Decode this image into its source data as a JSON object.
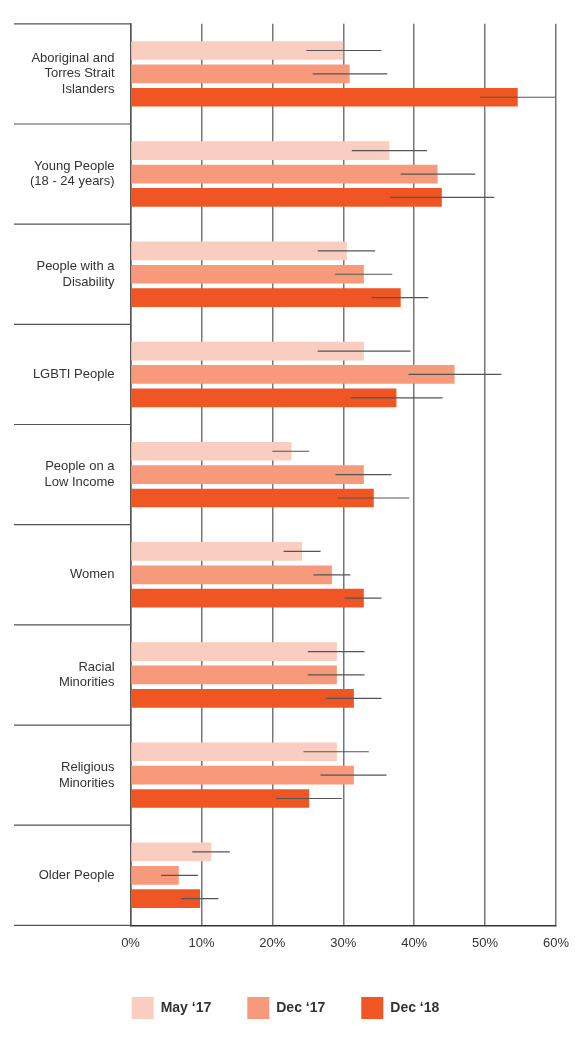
{
  "chart_data": {
    "type": "bar",
    "orientation": "horizontal",
    "categories": [
      "Aboriginal and\nTorres Strait\nIslanders",
      "Young People\n(18 - 24 years)",
      "People with a\nDisability",
      "LGBTI People",
      "People on a\nLow Income",
      "Women",
      "Racial\nMinorities",
      "Religious\nMinorities",
      "Older People"
    ],
    "series": [
      {
        "name": "May ‘17",
        "color": "#f9cdbf",
        "values": [
          30.0,
          36.5,
          30.5,
          32.9,
          22.7,
          24.2,
          29.1,
          29.1,
          11.4
        ],
        "errors": [
          [
            24.8,
            35.4
          ],
          [
            31.2,
            41.8
          ],
          [
            26.4,
            34.5
          ],
          [
            26.4,
            39.5
          ],
          [
            20.0,
            25.2
          ],
          [
            21.6,
            26.8
          ],
          [
            25.0,
            33.0
          ],
          [
            24.4,
            33.6
          ],
          [
            8.7,
            14.0
          ]
        ]
      },
      {
        "name": "Dec ‘17",
        "color": "#f69a7b",
        "values": [
          30.9,
          43.3,
          32.9,
          45.7,
          32.9,
          28.4,
          29.1,
          31.5,
          6.8
        ],
        "errors": [
          [
            25.7,
            36.2
          ],
          [
            38.1,
            48.6
          ],
          [
            28.8,
            36.9
          ],
          [
            39.2,
            52.3
          ],
          [
            28.9,
            36.8
          ],
          [
            25.8,
            31.0
          ],
          [
            25.0,
            33.0
          ],
          [
            26.8,
            36.1
          ],
          [
            4.3,
            9.5
          ]
        ]
      },
      {
        "name": "Dec ‘18",
        "color": "#f05623",
        "values": [
          54.6,
          43.9,
          38.1,
          37.5,
          34.3,
          32.9,
          31.5,
          25.2,
          9.8
        ],
        "errors": [
          [
            49.3,
            60.0
          ],
          [
            36.6,
            51.3
          ],
          [
            34.0,
            42.0
          ],
          [
            31.0,
            44.0
          ],
          [
            29.2,
            39.3
          ],
          [
            30.2,
            35.4
          ],
          [
            27.5,
            35.4
          ],
          [
            20.5,
            29.8
          ],
          [
            7.1,
            12.4
          ]
        ]
      }
    ],
    "xlim": [
      0,
      60
    ],
    "xticks": [
      {
        "value": 0,
        "label": "0%"
      },
      {
        "value": 10,
        "label": "10%"
      },
      {
        "value": 20,
        "label": "20%"
      },
      {
        "value": 30,
        "label": "30%"
      },
      {
        "value": 40,
        "label": "40%"
      },
      {
        "value": 50,
        "label": "50%"
      },
      {
        "value": 60,
        "label": "60%"
      }
    ],
    "grid": "x",
    "legend": "bottom"
  }
}
